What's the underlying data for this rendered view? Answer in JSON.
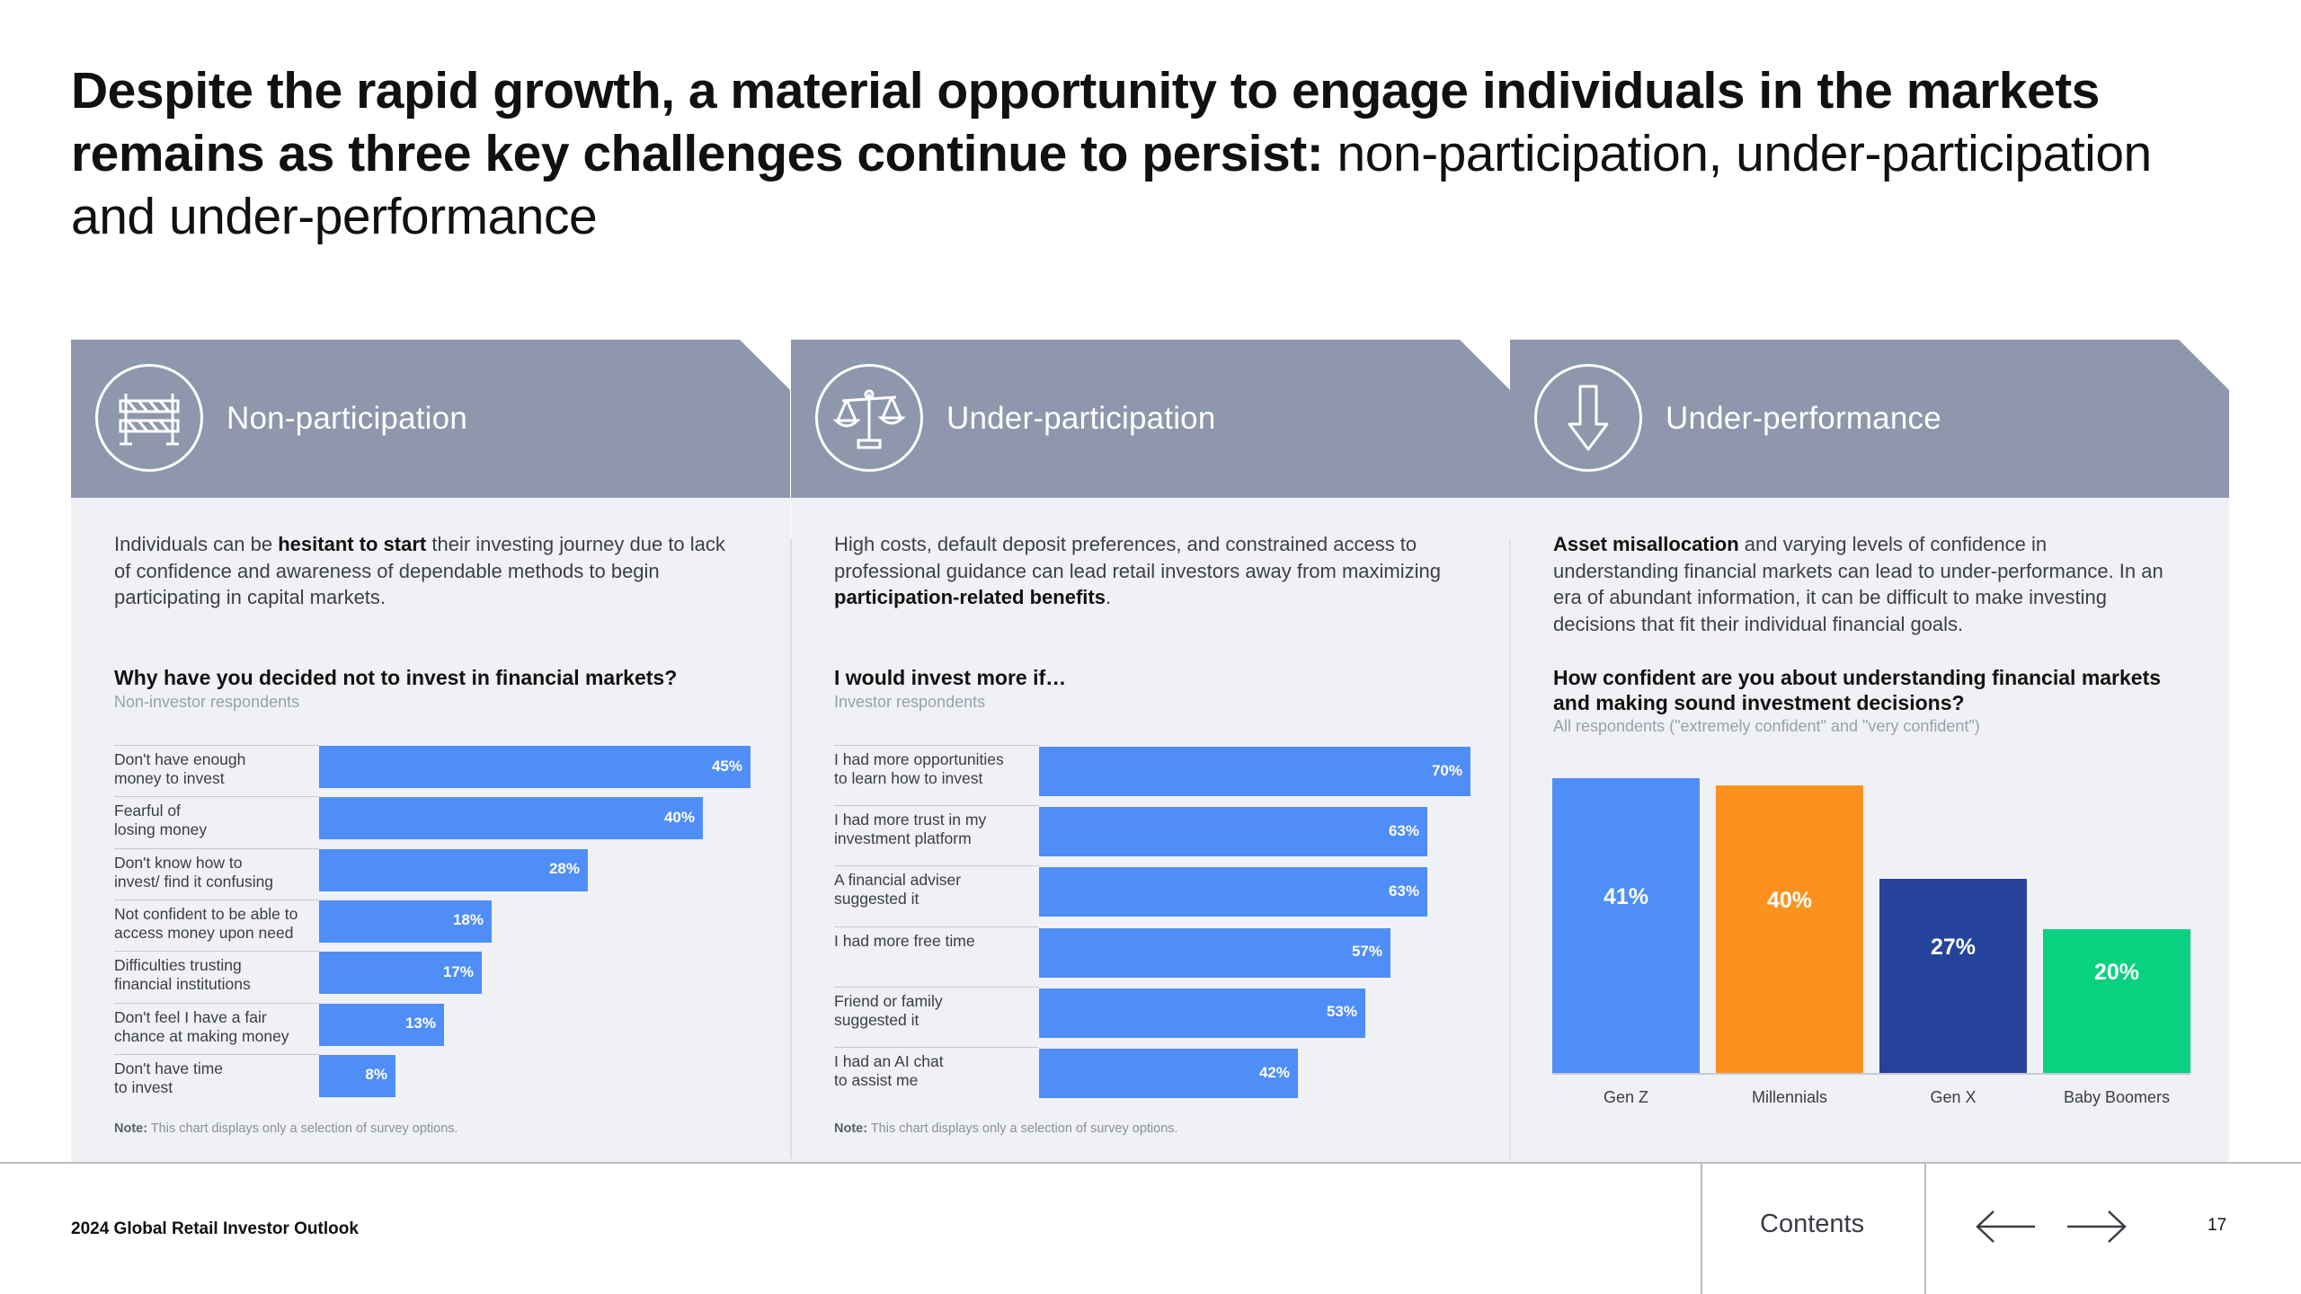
{
  "headline": {
    "bold": "Despite the rapid growth, a material opportunity to engage individuals in the markets remains as three key challenges continue to persist:",
    "light": " non-participation, under-participation and under-performance"
  },
  "colors": {
    "band": "#8e97ac",
    "panel_bg": "#f0f1f5",
    "bar_blue": "#4f8ef7",
    "genz": "#4f8ef7",
    "millennials": "#fb9220",
    "genx": "#26439b",
    "boomers": "#08d17f"
  },
  "panels": [
    {
      "title": "Non-participation",
      "icon": "barrier-icon",
      "desc_pre": "Individuals can be ",
      "desc_bold": "hesitant to start",
      "desc_post": " their investing journey due to lack of confidence and awareness of dependable methods to begin participating in capital markets.",
      "question": "Why have you decided not to invest in financial markets?",
      "subtitle": "Non-investor respondents",
      "note_label": "Note:",
      "note_text": " This chart displays only a selection of survey options."
    },
    {
      "title": "Under-participation",
      "icon": "scales-icon",
      "desc_pre": "High costs, default deposit preferences, and constrained access to professional guidance can lead retail investors away from maximizing ",
      "desc_bold": "participation-related benefits",
      "desc_post": ".",
      "question": "I would invest more if…",
      "subtitle": "Investor respondents",
      "note_label": "Note:",
      "note_text": " This chart displays only a selection of survey options."
    },
    {
      "title": "Under-performance",
      "icon": "down-arrow-icon",
      "desc_pre": "",
      "desc_bold": "Asset misallocation",
      "desc_post": " and varying levels of confidence in understanding financial markets can lead to under-performance. In an era of abundant information, it can be difficult to make investing decisions that fit their individual financial goals.",
      "question": "How confident are you about understanding financial markets and making sound investment decisions?",
      "subtitle": "All respondents (\"extremely confident\" and \"very confident\")"
    }
  ],
  "chart_data": [
    {
      "type": "bar",
      "orientation": "horizontal",
      "title": "Why have you decided not to invest in financial markets?",
      "categories": [
        "Don't have enough money to invest",
        "Fearful of losing money",
        "Don't know how to invest/ find it confusing",
        "Not confident to be able to access money upon need",
        "Difficulties trusting financial institutions",
        "Don't feel I have a fair chance at making money",
        "Don't have time to invest"
      ],
      "label_lines": [
        [
          "Don't have enough",
          "money to invest"
        ],
        [
          "Fearful of",
          "losing money"
        ],
        [
          "Don't know how to",
          "invest/ find it confusing"
        ],
        [
          "Not confident to be able to",
          "access money upon need"
        ],
        [
          "Difficulties trusting",
          "financial institutions"
        ],
        [
          "Don't feel I have a fair",
          "chance at making money"
        ],
        [
          "Don't have time",
          "to invest"
        ]
      ],
      "values": [
        45,
        40,
        28,
        18,
        17,
        13,
        8
      ],
      "labels": [
        "45%",
        "40%",
        "28%",
        "18%",
        "17%",
        "13%",
        "8%"
      ],
      "xlim": [
        0,
        45
      ]
    },
    {
      "type": "bar",
      "orientation": "horizontal",
      "title": "I would invest more if…",
      "categories": [
        "I had more opportunities to learn how to invest",
        "I had more trust in my investment platform",
        "A financial adviser suggested it",
        "I had more free time",
        "Friend or family suggested it",
        "I had an AI chat to assist me"
      ],
      "label_lines": [
        [
          "I had more opportunities",
          "to learn how to invest"
        ],
        [
          "I had more trust in my",
          "investment platform"
        ],
        [
          "A financial adviser",
          "suggested it"
        ],
        [
          "I had more free time"
        ],
        [
          "Friend or family",
          "suggested it"
        ],
        [
          "I had an AI chat",
          "to assist me"
        ]
      ],
      "values": [
        70,
        63,
        63,
        57,
        53,
        42
      ],
      "labels": [
        "70%",
        "63%",
        "63%",
        "57%",
        "53%",
        "42%"
      ],
      "xlim": [
        0,
        70
      ]
    },
    {
      "type": "bar",
      "orientation": "vertical",
      "title": "How confident are you about understanding financial markets and making sound investment decisions?",
      "categories": [
        "Gen Z",
        "Millennials",
        "Gen X",
        "Baby Boomers"
      ],
      "values": [
        41,
        40,
        27,
        20
      ],
      "labels": [
        "41%",
        "40%",
        "27%",
        "20%"
      ],
      "ylim": [
        0,
        41
      ]
    }
  ],
  "footer": {
    "report": "2024 Global Retail Investor Outlook",
    "contents": "Contents",
    "page": "17"
  }
}
